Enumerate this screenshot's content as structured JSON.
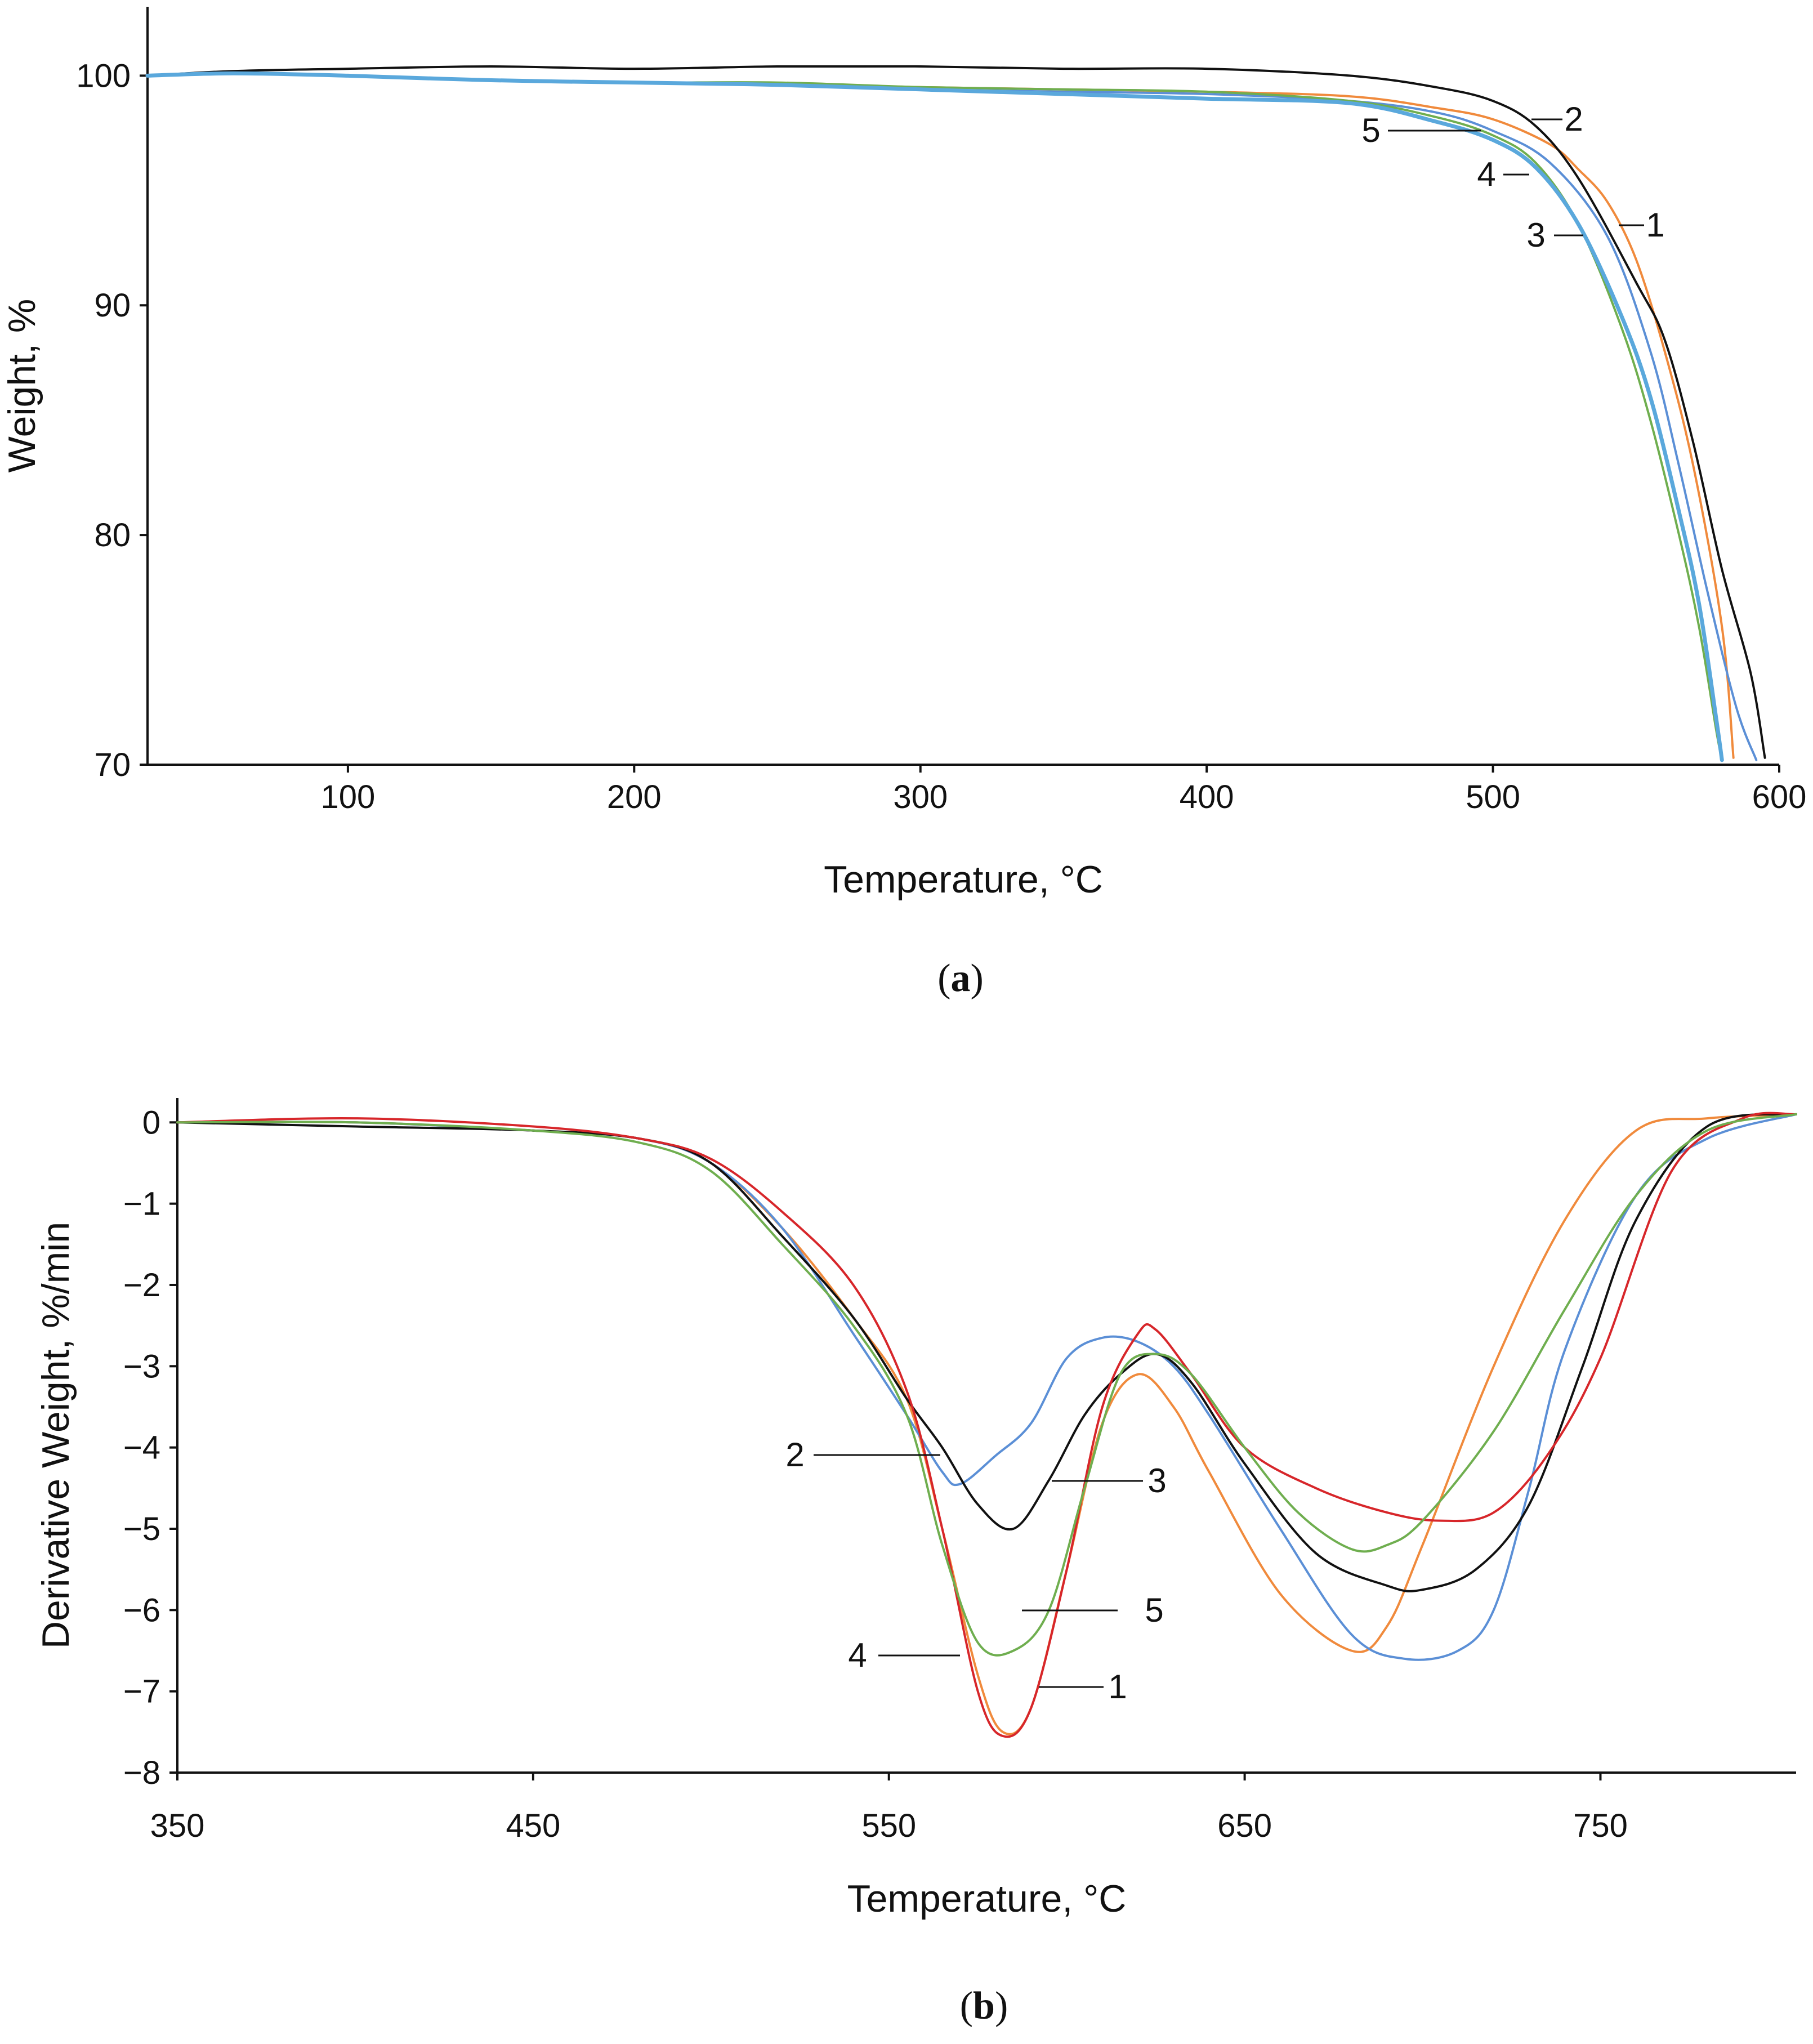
{
  "colors": {
    "black": "#111111",
    "orange": "#f08a3c",
    "blue": "#5b8fd6",
    "green": "#6fae4f",
    "red": "#d7262a",
    "thick_blue": "#5aa8dc"
  },
  "chart_data": [
    {
      "type": "line",
      "panel_label": "(a)",
      "title": "",
      "xlabel": "Temperature, °C",
      "ylabel": "Weight, %",
      "xlim": [
        30,
        600
      ],
      "ylim": [
        70,
        103
      ],
      "xticks": [
        100,
        200,
        300,
        400,
        500,
        600
      ],
      "yticks": [
        70,
        80,
        90,
        100
      ],
      "grid": false,
      "series": [
        {
          "name": "1",
          "color": "orange",
          "x": [
            30,
            60,
            100,
            150,
            200,
            250,
            300,
            350,
            400,
            450,
            480,
            500,
            520,
            530,
            540,
            550,
            560,
            570,
            580,
            584
          ],
          "y": [
            100,
            100.1,
            100,
            99.8,
            99.7,
            99.6,
            99.5,
            99.4,
            99.3,
            99.1,
            98.6,
            98.1,
            97.0,
            95.9,
            94.5,
            92.0,
            88.0,
            83.0,
            76.0,
            70.3
          ]
        },
        {
          "name": "2",
          "color": "black",
          "x": [
            30,
            60,
            100,
            150,
            200,
            250,
            300,
            350,
            400,
            450,
            480,
            500,
            515,
            530,
            550,
            560,
            570,
            580,
            590,
            595
          ],
          "y": [
            100,
            100.2,
            100.3,
            100.4,
            100.3,
            100.4,
            100.4,
            100.3,
            100.3,
            100.0,
            99.5,
            98.9,
            97.8,
            95.5,
            91.0,
            88.5,
            84.0,
            78.5,
            74.0,
            70.3
          ]
        },
        {
          "name": "3",
          "color": "blue",
          "x": [
            30,
            60,
            100,
            150,
            200,
            250,
            300,
            350,
            400,
            450,
            480,
            500,
            520,
            540,
            555,
            565,
            575,
            585,
            592
          ],
          "y": [
            100,
            100.1,
            100,
            99.8,
            99.7,
            99.6,
            99.4,
            99.3,
            99.2,
            98.9,
            98.4,
            97.6,
            96.2,
            93.0,
            88.0,
            83.0,
            77.5,
            72.5,
            70.2
          ]
        },
        {
          "name": "4",
          "color": "green",
          "x": [
            30,
            60,
            100,
            150,
            200,
            250,
            300,
            350,
            400,
            450,
            480,
            500,
            515,
            530,
            545,
            555,
            565,
            572,
            578,
            580
          ],
          "y": [
            100,
            100.1,
            100,
            99.8,
            99.7,
            99.7,
            99.5,
            99.4,
            99.3,
            98.9,
            98.2,
            97.4,
            96.2,
            93.5,
            89.0,
            85.0,
            80.0,
            76.0,
            71.5,
            70.2
          ]
        },
        {
          "name": "5",
          "color": "thick_blue",
          "x": [
            30,
            60,
            100,
            150,
            200,
            250,
            300,
            350,
            400,
            450,
            480,
            500,
            515,
            530,
            545,
            555,
            565,
            572,
            578,
            580
          ],
          "y": [
            100,
            100.1,
            100,
            99.8,
            99.7,
            99.6,
            99.4,
            99.2,
            99.0,
            98.8,
            98.0,
            97.2,
            96.0,
            93.5,
            89.5,
            86.0,
            81.0,
            77.0,
            72.0,
            70.2
          ]
        }
      ],
      "labels": [
        {
          "text": "1",
          "target": [
            548,
            93.4
          ]
        },
        {
          "text": "2",
          "target": [
            518,
            97.6
          ]
        },
        {
          "text": "3",
          "target": [
            534,
            93.0
          ]
        },
        {
          "text": "4",
          "target": [
            524,
            95.7
          ]
        },
        {
          "text": "5",
          "target": [
            500,
            97.4
          ]
        }
      ]
    },
    {
      "type": "line",
      "panel_label": "(b)",
      "title": "",
      "xlabel": "Temperature, °C",
      "ylabel": "Derivative Weight, %/min",
      "xlim": [
        350,
        805
      ],
      "ylim": [
        -8,
        0.3
      ],
      "xticks": [
        350,
        450,
        550,
        650,
        750
      ],
      "yticks": [
        0,
        -1,
        -2,
        -3,
        -4,
        -5,
        -6,
        -7,
        -8
      ],
      "grid": false,
      "series": [
        {
          "name": "1",
          "color": "orange",
          "x": [
            350,
            400,
            450,
            480,
            500,
            520,
            540,
            555,
            565,
            575,
            582,
            590,
            600,
            610,
            620,
            630,
            640,
            660,
            680,
            690,
            700,
            720,
            740,
            760,
            780,
            805
          ],
          "y": [
            0,
            0,
            -0.1,
            -0.2,
            -0.5,
            -1.3,
            -2.4,
            -3.4,
            -5.0,
            -6.8,
            -7.5,
            -7.2,
            -5.5,
            -3.7,
            -3.1,
            -3.5,
            -4.3,
            -5.8,
            -6.5,
            -6.2,
            -5.2,
            -3.0,
            -1.2,
            -0.1,
            0.05,
            0.1
          ]
        },
        {
          "name": "2",
          "color": "blue",
          "x": [
            350,
            400,
            450,
            480,
            500,
            520,
            540,
            555,
            565,
            570,
            580,
            590,
            600,
            610,
            620,
            630,
            640,
            660,
            680,
            695,
            710,
            720,
            730,
            740,
            760,
            780,
            805
          ],
          "y": [
            0,
            0,
            -0.1,
            -0.2,
            -0.5,
            -1.3,
            -2.6,
            -3.6,
            -4.3,
            -4.45,
            -4.1,
            -3.7,
            -2.9,
            -2.65,
            -2.7,
            -3.0,
            -3.6,
            -5.0,
            -6.3,
            -6.6,
            -6.5,
            -6.0,
            -4.5,
            -2.8,
            -0.9,
            -0.2,
            0.1
          ]
        },
        {
          "name": "3",
          "color": "black",
          "x": [
            350,
            400,
            450,
            480,
            500,
            520,
            540,
            555,
            565,
            575,
            585,
            595,
            605,
            615,
            625,
            635,
            650,
            670,
            690,
            700,
            715,
            730,
            745,
            760,
            780,
            805
          ],
          "y": [
            0,
            -0.05,
            -0.1,
            -0.2,
            -0.5,
            -1.4,
            -2.4,
            -3.4,
            -4.0,
            -4.7,
            -5.0,
            -4.4,
            -3.6,
            -3.1,
            -2.85,
            -3.2,
            -4.2,
            -5.3,
            -5.7,
            -5.75,
            -5.5,
            -4.7,
            -3.0,
            -1.2,
            -0.05,
            0.1
          ]
        },
        {
          "name": "4",
          "color": "red",
          "x": [
            350,
            400,
            450,
            480,
            500,
            520,
            540,
            555,
            565,
            575,
            582,
            590,
            600,
            610,
            620,
            625,
            635,
            650,
            670,
            690,
            705,
            720,
            735,
            750,
            770,
            790,
            805
          ],
          "y": [
            0,
            0.05,
            -0.05,
            -0.2,
            -0.45,
            -1.1,
            -2.0,
            -3.3,
            -5.0,
            -7.0,
            -7.55,
            -7.2,
            -5.5,
            -3.5,
            -2.6,
            -2.55,
            -3.1,
            -4.0,
            -4.5,
            -4.8,
            -4.9,
            -4.8,
            -4.1,
            -2.9,
            -0.6,
            0.05,
            0.1
          ]
        },
        {
          "name": "5",
          "color": "green",
          "x": [
            350,
            400,
            450,
            480,
            500,
            520,
            540,
            555,
            565,
            575,
            585,
            595,
            605,
            615,
            625,
            635,
            650,
            665,
            680,
            690,
            700,
            720,
            740,
            760,
            780,
            805
          ],
          "y": [
            0,
            0,
            -0.1,
            -0.25,
            -0.6,
            -1.5,
            -2.5,
            -3.6,
            -5.2,
            -6.4,
            -6.5,
            -6.0,
            -4.5,
            -3.1,
            -2.85,
            -3.1,
            -4.0,
            -4.8,
            -5.25,
            -5.2,
            -4.9,
            -3.8,
            -2.3,
            -0.9,
            -0.1,
            0.1
          ]
        }
      ],
      "labels": [
        {
          "text": "1",
          "target": [
            592,
            -7.35
          ]
        },
        {
          "text": "2",
          "target": [
            566,
            -4.4
          ]
        },
        {
          "text": "3",
          "target": [
            596,
            -4.7
          ]
        },
        {
          "text": "4",
          "target": [
            571,
            -7.0
          ]
        },
        {
          "text": "5",
          "target": [
            590,
            -6.35
          ]
        }
      ]
    }
  ]
}
